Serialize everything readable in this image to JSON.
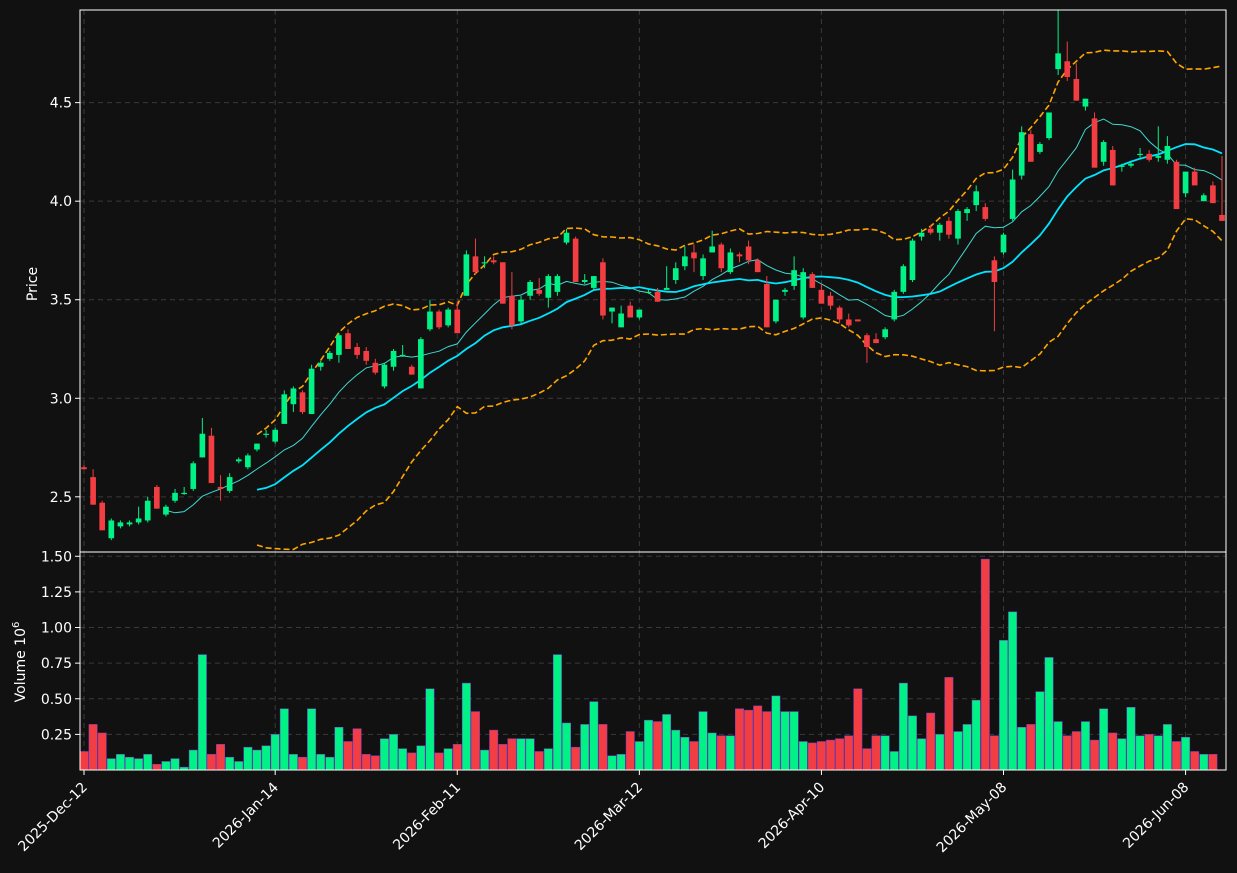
{
  "chart_data": [
    {
      "type": "candlestick",
      "ylabel": "Price",
      "yticks": [
        2.5,
        3.0,
        3.5,
        4.0,
        4.5
      ],
      "ylim": [
        2.22,
        4.97
      ],
      "xticks": [
        "2025-Dec-12",
        "2026-Jan-14",
        "2026-Feb-11",
        "2026-Mar-12",
        "2026-Apr-10",
        "2026-May-08",
        "2026-Jun-08"
      ],
      "grid": true,
      "colors": {
        "up": "#00f286",
        "down": "#f23e42",
        "background": "#111111",
        "grid": "#3a3a3a",
        "ma_long": "#00e5ff",
        "ma_short": "#3fd9d1",
        "band": "#ffa500"
      },
      "series": [
        {
          "type": "candlestick",
          "values": [
            [
              2.65,
              2.66,
              2.64,
              2.64
            ],
            [
              2.6,
              2.64,
              2.46,
              2.46
            ],
            [
              2.47,
              2.48,
              2.33,
              2.33
            ],
            [
              2.29,
              2.39,
              2.28,
              2.38
            ],
            [
              2.35,
              2.38,
              2.34,
              2.37
            ],
            [
              2.36,
              2.38,
              2.35,
              2.37
            ],
            [
              2.37,
              2.45,
              2.36,
              2.39
            ],
            [
              2.38,
              2.5,
              2.37,
              2.48
            ],
            [
              2.55,
              2.56,
              2.44,
              2.44
            ],
            [
              2.41,
              2.46,
              2.4,
              2.45
            ],
            [
              2.48,
              2.54,
              2.47,
              2.52
            ],
            [
              2.52,
              2.55,
              2.51,
              2.52
            ],
            [
              2.54,
              2.68,
              2.53,
              2.67
            ],
            [
              2.7,
              2.9,
              2.7,
              2.82
            ],
            [
              2.81,
              2.85,
              2.57,
              2.57
            ],
            [
              2.55,
              2.61,
              2.48,
              2.54
            ],
            [
              2.53,
              2.62,
              2.52,
              2.6
            ],
            [
              2.68,
              2.7,
              2.67,
              2.69
            ],
            [
              2.65,
              2.72,
              2.64,
              2.71
            ],
            [
              2.74,
              2.77,
              2.73,
              2.77
            ],
            [
              2.82,
              2.84,
              2.8,
              2.82
            ],
            [
              2.78,
              2.85,
              2.77,
              2.84
            ],
            [
              2.87,
              3.04,
              2.87,
              3.02
            ],
            [
              2.97,
              3.06,
              2.93,
              3.05
            ],
            [
              3.03,
              3.04,
              2.92,
              2.93
            ],
            [
              2.92,
              3.17,
              2.92,
              3.15
            ],
            [
              3.16,
              3.19,
              3.14,
              3.18
            ],
            [
              3.2,
              3.24,
              3.19,
              3.23
            ],
            [
              3.22,
              3.33,
              3.18,
              3.32
            ],
            [
              3.33,
              3.35,
              3.25,
              3.25
            ],
            [
              3.26,
              3.28,
              3.2,
              3.22
            ],
            [
              3.24,
              3.26,
              3.17,
              3.19
            ],
            [
              3.18,
              3.2,
              3.12,
              3.13
            ],
            [
              3.06,
              3.18,
              3.05,
              3.17
            ],
            [
              3.16,
              3.25,
              3.14,
              3.24
            ],
            [
              3.22,
              3.27,
              3.21,
              3.22
            ],
            [
              3.16,
              3.17,
              3.12,
              3.12
            ],
            [
              3.05,
              3.31,
              3.05,
              3.3
            ],
            [
              3.35,
              3.5,
              3.34,
              3.44
            ],
            [
              3.44,
              3.45,
              3.35,
              3.36
            ],
            [
              3.37,
              3.46,
              3.36,
              3.45
            ],
            [
              3.45,
              3.49,
              3.33,
              3.33
            ],
            [
              3.52,
              3.75,
              3.52,
              3.73
            ],
            [
              3.72,
              3.81,
              3.63,
              3.64
            ],
            [
              3.69,
              3.72,
              3.66,
              3.69
            ],
            [
              3.7,
              3.72,
              3.68,
              3.69
            ],
            [
              3.69,
              3.69,
              3.48,
              3.48
            ],
            [
              3.52,
              3.64,
              3.35,
              3.37
            ],
            [
              3.39,
              3.52,
              3.38,
              3.5
            ],
            [
              3.52,
              3.6,
              3.5,
              3.59
            ],
            [
              3.55,
              3.61,
              3.52,
              3.53
            ],
            [
              3.51,
              3.63,
              3.46,
              3.62
            ],
            [
              3.54,
              3.63,
              3.52,
              3.62
            ],
            [
              3.79,
              3.86,
              3.78,
              3.84
            ],
            [
              3.81,
              3.82,
              3.59,
              3.59
            ],
            [
              3.59,
              3.63,
              3.58,
              3.6
            ],
            [
              3.56,
              3.62,
              3.55,
              3.62
            ],
            [
              3.69,
              3.71,
              3.4,
              3.42
            ],
            [
              3.44,
              3.46,
              3.38,
              3.46
            ],
            [
              3.36,
              3.47,
              3.36,
              3.43
            ],
            [
              3.47,
              3.49,
              3.41,
              3.41
            ],
            [
              3.41,
              3.45,
              3.4,
              3.45
            ],
            [
              3.54,
              3.55,
              3.53,
              3.54
            ],
            [
              3.54,
              3.56,
              3.49,
              3.49
            ],
            [
              3.55,
              3.67,
              3.55,
              3.56
            ],
            [
              3.6,
              3.69,
              3.58,
              3.66
            ],
            [
              3.67,
              3.77,
              3.65,
              3.72
            ],
            [
              3.74,
              3.78,
              3.64,
              3.71
            ],
            [
              3.62,
              3.73,
              3.6,
              3.71
            ],
            [
              3.74,
              3.85,
              3.74,
              3.77
            ],
            [
              3.78,
              3.79,
              3.64,
              3.66
            ],
            [
              3.64,
              3.76,
              3.63,
              3.74
            ],
            [
              3.73,
              3.74,
              3.69,
              3.72
            ],
            [
              3.77,
              3.8,
              3.68,
              3.7
            ],
            [
              3.7,
              3.71,
              3.64,
              3.64
            ],
            [
              3.58,
              3.62,
              3.36,
              3.36
            ],
            [
              3.39,
              3.5,
              3.38,
              3.5
            ],
            [
              3.54,
              3.56,
              3.52,
              3.55
            ],
            [
              3.57,
              3.72,
              3.55,
              3.65
            ],
            [
              3.41,
              3.66,
              3.4,
              3.64
            ],
            [
              3.63,
              3.64,
              3.56,
              3.56
            ],
            [
              3.55,
              3.58,
              3.48,
              3.48
            ],
            [
              3.52,
              3.54,
              3.45,
              3.47
            ],
            [
              3.46,
              3.47,
              3.38,
              3.4
            ],
            [
              3.4,
              3.43,
              3.36,
              3.37
            ],
            [
              3.4,
              3.4,
              3.39,
              3.39
            ],
            [
              3.32,
              3.33,
              3.18,
              3.26
            ],
            [
              3.3,
              3.33,
              3.28,
              3.28
            ],
            [
              3.31,
              3.36,
              3.3,
              3.35
            ],
            [
              3.4,
              3.55,
              3.39,
              3.54
            ],
            [
              3.54,
              3.68,
              3.53,
              3.67
            ],
            [
              3.6,
              3.81,
              3.59,
              3.8
            ],
            [
              3.82,
              3.86,
              3.8,
              3.84
            ],
            [
              3.86,
              3.88,
              3.83,
              3.84
            ],
            [
              3.84,
              3.89,
              3.8,
              3.88
            ],
            [
              3.9,
              3.92,
              3.81,
              3.83
            ],
            [
              3.81,
              3.96,
              3.78,
              3.95
            ],
            [
              3.94,
              3.97,
              3.9,
              3.96
            ],
            [
              3.98,
              4.08,
              3.95,
              4.05
            ],
            [
              3.97,
              3.99,
              3.9,
              3.91
            ],
            [
              3.7,
              3.72,
              3.34,
              3.59
            ],
            [
              3.74,
              3.84,
              3.73,
              3.83
            ],
            [
              3.91,
              4.16,
              3.9,
              4.11
            ],
            [
              4.13,
              4.38,
              4.11,
              4.35
            ],
            [
              4.34,
              4.36,
              4.2,
              4.2
            ],
            [
              4.25,
              4.3,
              4.24,
              4.29
            ],
            [
              4.32,
              4.45,
              4.31,
              4.45
            ],
            [
              4.67,
              4.97,
              4.64,
              4.75
            ],
            [
              4.71,
              4.81,
              4.61,
              4.63
            ],
            [
              4.62,
              4.7,
              4.51,
              4.51
            ],
            [
              4.48,
              4.52,
              4.46,
              4.52
            ],
            [
              4.42,
              4.45,
              4.17,
              4.17
            ],
            [
              4.2,
              4.31,
              4.18,
              4.3
            ],
            [
              4.26,
              4.28,
              4.08,
              4.08
            ],
            [
              4.18,
              4.19,
              4.15,
              4.18
            ],
            [
              4.18,
              4.2,
              4.17,
              4.19
            ],
            [
              4.24,
              4.27,
              4.22,
              4.24
            ],
            [
              4.24,
              4.26,
              4.2,
              4.21
            ],
            [
              4.22,
              4.38,
              4.2,
              4.23
            ],
            [
              4.21,
              4.33,
              4.19,
              4.28
            ],
            [
              4.2,
              4.21,
              3.96,
              3.96
            ],
            [
              4.04,
              4.15,
              4.02,
              4.15
            ],
            [
              4.15,
              4.17,
              4.08,
              4.08
            ],
            [
              4.0,
              4.04,
              4.0,
              4.03
            ],
            [
              4.08,
              4.1,
              3.99,
              3.99
            ],
            [
              3.93,
              4.23,
              3.9,
              3.9
            ]
          ]
        },
        {
          "type": "line",
          "values": [
            null,
            null,
            null,
            null,
            null,
            null,
            null,
            null,
            null,
            null,
            null,
            null,
            null,
            null,
            null,
            null,
            null,
            null,
            null,
            null,
            null,
            null,
            null,
            null,
            null,
            null,
            null,
            null,
            null,
            null,
            null,
            null,
            null,
            null,
            null,
            null,
            null,
            null,
            null,
            null,
            null,
            null,
            null,
            null,
            null,
            null,
            null,
            null,
            null,
            null,
            null,
            null,
            null,
            null,
            null,
            null,
            null,
            null,
            null,
            null,
            null,
            null,
            null,
            null,
            null,
            null,
            null,
            null,
            null,
            null,
            null,
            null,
            null,
            null,
            null,
            null,
            null,
            null,
            null,
            null,
            null,
            null,
            null,
            null,
            null,
            null,
            null,
            null,
            null,
            null,
            null,
            null,
            null,
            null,
            null,
            null,
            null,
            null,
            null,
            null,
            null,
            null,
            null,
            null,
            null,
            null,
            null,
            null,
            null,
            null,
            null,
            null,
            null,
            null,
            null,
            null,
            null,
            null,
            null,
            null,
            null,
            null,
            null,
            null,
            null,
            null,
            null
          ]
        },
        {
          "type": "line",
          "values": []
        },
        {
          "type": "line",
          "values": []
        },
        {
          "type": "line",
          "values": []
        }
      ]
    },
    {
      "type": "bar",
      "ylabel": "Volume  10",
      "ylabel_exponent": "6",
      "yticks": [
        0.25,
        0.5,
        0.75,
        1.0,
        1.25,
        1.5
      ],
      "ylim": [
        0,
        1.53
      ],
      "xticks": [
        "2025-Dec-12",
        "2026-Jan-14",
        "2026-Feb-11",
        "2026-Mar-12",
        "2026-Apr-10",
        "2026-May-08",
        "2026-Jun-08"
      ],
      "grid": true,
      "series": [
        {
          "values": [
            0.13,
            0.32,
            0.26,
            0.08,
            0.11,
            0.09,
            0.08,
            0.11,
            0.04,
            0.06,
            0.08,
            0.02,
            0.14,
            0.81,
            0.11,
            0.18,
            0.09,
            0.06,
            0.16,
            0.14,
            0.17,
            0.25,
            0.43,
            0.11,
            0.09,
            0.43,
            0.11,
            0.09,
            0.3,
            0.2,
            0.29,
            0.11,
            0.1,
            0.22,
            0.25,
            0.15,
            0.12,
            0.17,
            0.57,
            0.12,
            0.15,
            0.18,
            0.61,
            0.41,
            0.14,
            0.28,
            0.18,
            0.22,
            0.22,
            0.22,
            0.13,
            0.15,
            0.81,
            0.33,
            0.16,
            0.32,
            0.48,
            0.32,
            0.1,
            0.11,
            0.27,
            0.2,
            0.35,
            0.34,
            0.39,
            0.28,
            0.23,
            0.2,
            0.41,
            0.26,
            0.24,
            0.24,
            0.43,
            0.42,
            0.45,
            0.41,
            0.52,
            0.41,
            0.41,
            0.2,
            0.19,
            0.2,
            0.21,
            0.22,
            0.24,
            0.57,
            0.15,
            0.24,
            0.24,
            0.13,
            0.61,
            0.38,
            0.22,
            0.4,
            0.25,
            0.65,
            0.27,
            0.32,
            0.49,
            1.48,
            0.24,
            0.91,
            1.11,
            0.3,
            0.32,
            0.55,
            0.79,
            0.34,
            0.24,
            0.27,
            0.34,
            0.21,
            0.43,
            0.26,
            0.22,
            0.44,
            0.24,
            0.25,
            0.24,
            0.32,
            0.2,
            0.23,
            0.13,
            0.11,
            0.11
          ]
        }
      ]
    }
  ]
}
